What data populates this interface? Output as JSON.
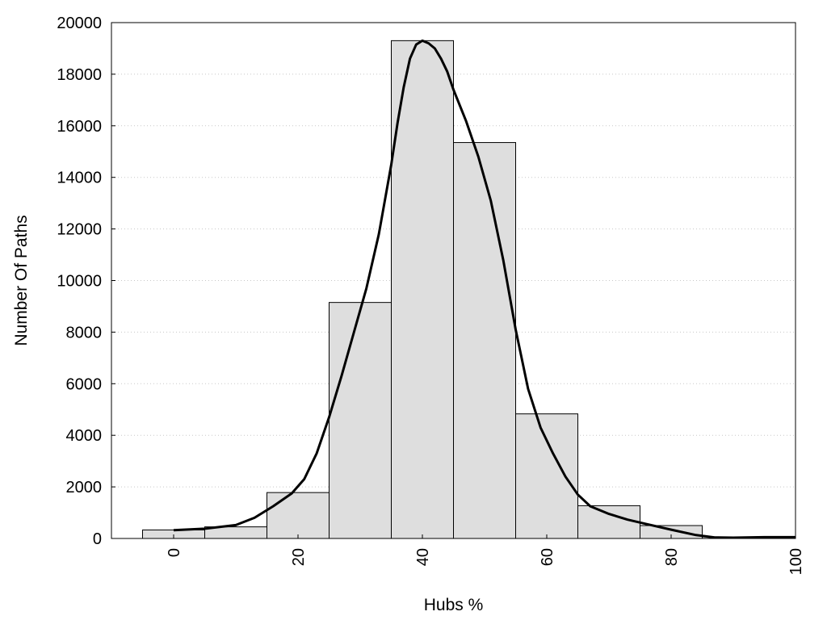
{
  "chart_data": {
    "type": "bar",
    "title": "",
    "xlabel": "Hubs %",
    "ylabel": "Number Of Paths",
    "xlim": [
      -10,
      100
    ],
    "ylim": [
      0,
      20000
    ],
    "grid": "horizontal-dotted",
    "legend": "none",
    "colors": {
      "bar_fill": "#dedede",
      "bar_stroke": "#000000",
      "curve": "#000000",
      "grid": "#c8c8c8"
    },
    "x_ticks": [
      0,
      20,
      40,
      60,
      80,
      100
    ],
    "y_ticks": [
      0,
      2000,
      4000,
      6000,
      8000,
      10000,
      12000,
      14000,
      16000,
      18000,
      20000
    ],
    "bins": [
      {
        "x0": -5,
        "x1": 5,
        "value": 330
      },
      {
        "x0": 5,
        "x1": 15,
        "value": 450
      },
      {
        "x0": 15,
        "x1": 25,
        "value": 1780
      },
      {
        "x0": 25,
        "x1": 35,
        "value": 9150
      },
      {
        "x0": 35,
        "x1": 45,
        "value": 19300
      },
      {
        "x0": 45,
        "x1": 55,
        "value": 15350
      },
      {
        "x0": 55,
        "x1": 65,
        "value": 4830
      },
      {
        "x0": 65,
        "x1": 75,
        "value": 1270
      },
      {
        "x0": 75,
        "x1": 85,
        "value": 500
      },
      {
        "x0": 85,
        "x1": 95,
        "value": 60
      },
      {
        "x0": 95,
        "x1": 100,
        "value": 60
      }
    ],
    "density_curve": {
      "x": [
        0,
        5,
        10,
        13,
        16,
        19,
        21,
        23,
        25,
        27,
        29,
        31,
        33,
        35,
        36,
        37,
        38,
        39,
        40,
        41,
        42,
        43,
        44,
        45,
        47,
        49,
        51,
        53,
        55,
        57,
        59,
        61,
        63,
        65,
        67,
        70,
        73,
        76,
        80,
        84,
        87,
        90,
        95,
        100
      ],
      "y": [
        320,
        380,
        520,
        800,
        1250,
        1750,
        2300,
        3300,
        4700,
        6300,
        8000,
        9700,
        11800,
        14500,
        16100,
        17500,
        18600,
        19150,
        19300,
        19200,
        19000,
        18600,
        18100,
        17400,
        16200,
        14800,
        13100,
        10800,
        8100,
        5800,
        4300,
        3300,
        2400,
        1700,
        1250,
        950,
        730,
        560,
        340,
        130,
        40,
        30,
        50,
        50
      ]
    }
  }
}
